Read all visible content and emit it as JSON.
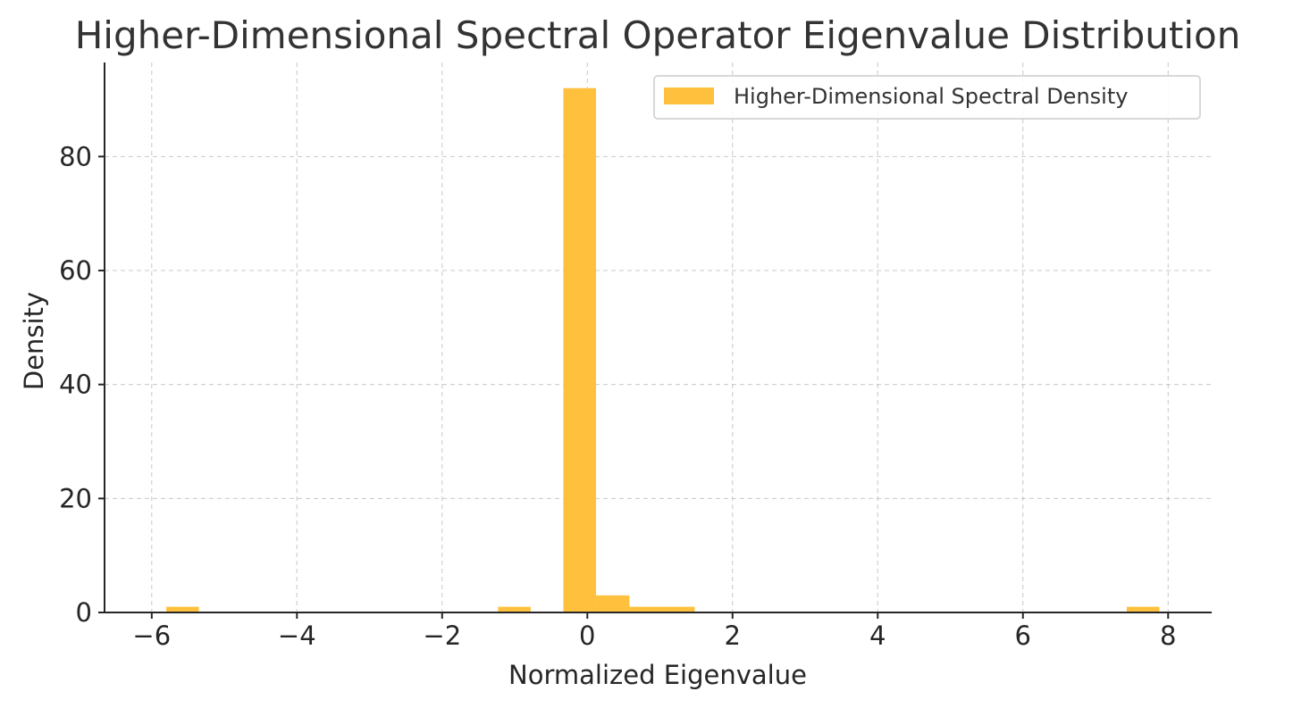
{
  "chart_data": {
    "type": "bar",
    "title": "Higher-Dimensional Spectral Operator Eigenvalue Distribution",
    "xlabel": "Normalized Eigenvalue",
    "ylabel": "Density",
    "xlim": [
      -6.65,
      8.6
    ],
    "ylim": [
      0,
      96.5
    ],
    "xticks": [
      -6,
      -4,
      -2,
      0,
      2,
      4,
      6,
      8
    ],
    "xtick_labels": [
      "−6",
      "−4",
      "−2",
      "0",
      "2",
      "4",
      "6",
      "8"
    ],
    "yticks": [
      0,
      20,
      40,
      60,
      80
    ],
    "ytick_labels": [
      "0",
      "20",
      "40",
      "60",
      "80"
    ],
    "grid": true,
    "legend_position": "top-right",
    "color": "#ffc13d",
    "series": [
      {
        "name": "Higher-Dimensional Spectral Density",
        "bins": [
          {
            "x0": -5.8,
            "x1": -5.35,
            "value": 1
          },
          {
            "x0": -1.23,
            "x1": -0.78,
            "value": 1
          },
          {
            "x0": -0.33,
            "x1": 0.12,
            "value": 92
          },
          {
            "x0": 0.12,
            "x1": 0.58,
            "value": 3
          },
          {
            "x0": 0.58,
            "x1": 1.03,
            "value": 1
          },
          {
            "x0": 1.03,
            "x1": 1.48,
            "value": 1
          },
          {
            "x0": 7.43,
            "x1": 7.88,
            "value": 1
          }
        ]
      }
    ]
  }
}
